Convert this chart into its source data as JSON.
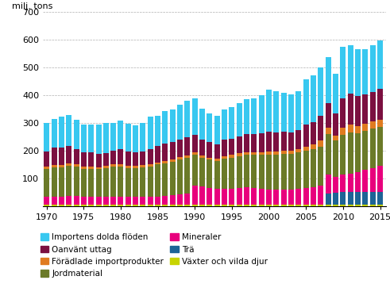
{
  "years": [
    1970,
    1971,
    1972,
    1973,
    1974,
    1975,
    1976,
    1977,
    1978,
    1979,
    1980,
    1981,
    1982,
    1983,
    1984,
    1985,
    1986,
    1987,
    1988,
    1989,
    1990,
    1991,
    1992,
    1993,
    1994,
    1995,
    1996,
    1997,
    1998,
    1999,
    2000,
    2001,
    2002,
    2003,
    2004,
    2005,
    2006,
    2007,
    2008,
    2009,
    2010,
    2011,
    2012,
    2013,
    2014,
    2015
  ],
  "series": {
    "Växter och vilda djur": [
      5,
      5,
      5,
      5,
      5,
      5,
      5,
      5,
      5,
      5,
      5,
      5,
      5,
      5,
      5,
      5,
      5,
      5,
      5,
      5,
      5,
      5,
      5,
      5,
      5,
      5,
      5,
      5,
      5,
      5,
      5,
      5,
      5,
      5,
      5,
      5,
      5,
      5,
      5,
      5,
      5,
      5,
      5,
      5,
      5,
      5
    ],
    "Trä": [
      0,
      0,
      0,
      0,
      0,
      0,
      0,
      0,
      0,
      0,
      0,
      0,
      0,
      0,
      0,
      0,
      0,
      0,
      0,
      0,
      0,
      0,
      0,
      0,
      0,
      0,
      0,
      0,
      0,
      0,
      0,
      0,
      0,
      0,
      0,
      0,
      0,
      0,
      40,
      42,
      45,
      45,
      45,
      45,
      45,
      45
    ],
    "Mineraler": [
      30,
      30,
      30,
      32,
      32,
      30,
      30,
      28,
      28,
      28,
      28,
      28,
      28,
      28,
      28,
      30,
      32,
      35,
      38,
      40,
      70,
      65,
      60,
      58,
      58,
      58,
      60,
      62,
      60,
      58,
      55,
      55,
      55,
      55,
      58,
      60,
      62,
      68,
      70,
      58,
      65,
      68,
      72,
      80,
      88,
      95
    ],
    "Jordmaterial": [
      100,
      105,
      105,
      108,
      105,
      100,
      100,
      100,
      105,
      110,
      110,
      105,
      105,
      108,
      110,
      115,
      118,
      120,
      125,
      128,
      110,
      105,
      102,
      100,
      108,
      112,
      115,
      118,
      120,
      122,
      125,
      125,
      128,
      128,
      130,
      135,
      138,
      142,
      145,
      132,
      142,
      148,
      142,
      142,
      142,
      140
    ],
    "Förädlade importprodukter": [
      8,
      8,
      8,
      8,
      8,
      8,
      8,
      8,
      8,
      8,
      8,
      8,
      8,
      8,
      8,
      8,
      8,
      8,
      10,
      10,
      8,
      8,
      8,
      8,
      10,
      10,
      10,
      10,
      10,
      10,
      12,
      12,
      12,
      12,
      12,
      15,
      18,
      22,
      22,
      18,
      25,
      28,
      25,
      25,
      25,
      25
    ],
    "Oanvänt uttag": [
      55,
      62,
      62,
      65,
      55,
      50,
      50,
      48,
      46,
      50,
      55,
      50,
      48,
      48,
      55,
      58,
      62,
      62,
      62,
      65,
      65,
      58,
      55,
      52,
      58,
      58,
      62,
      65,
      65,
      68,
      72,
      70,
      68,
      65,
      68,
      78,
      80,
      88,
      90,
      78,
      108,
      112,
      108,
      105,
      108,
      112
    ],
    "Importens dolda flöden": [
      102,
      105,
      112,
      110,
      105,
      100,
      100,
      105,
      108,
      100,
      102,
      100,
      98,
      104,
      116,
      110,
      118,
      118,
      125,
      132,
      130,
      110,
      105,
      102,
      110,
      115,
      120,
      125,
      130,
      138,
      150,
      148,
      142,
      138,
      142,
      165,
      170,
      175,
      165,
      145,
      185,
      175,
      168,
      165,
      168,
      175
    ]
  },
  "colors": {
    "Växter och vilda djur": "#c8d400",
    "Trä": "#1e6496",
    "Mineraler": "#e8007d",
    "Jordmaterial": "#6b7a28",
    "Förädlade importprodukter": "#e07b20",
    "Oanvänt uttag": "#7b1040",
    "Importens dolda flöden": "#38c8f0"
  },
  "ylabel": "milj. tons",
  "ylim": [
    0,
    700
  ],
  "yticks": [
    100,
    200,
    300,
    400,
    500,
    600,
    700
  ],
  "xticks": [
    1970,
    1975,
    1980,
    1985,
    1990,
    1995,
    2000,
    2005,
    2010,
    2015
  ],
  "legend_col1": [
    "Importens dolda flöden",
    "Förädlade importprodukter",
    "Mineraler",
    "Växter och vilda djur"
  ],
  "legend_col2": [
    "Oanvänt uttag",
    "Jordmaterial",
    "Trä"
  ],
  "grid_color": "#b0b0b0",
  "background_color": "#ffffff"
}
